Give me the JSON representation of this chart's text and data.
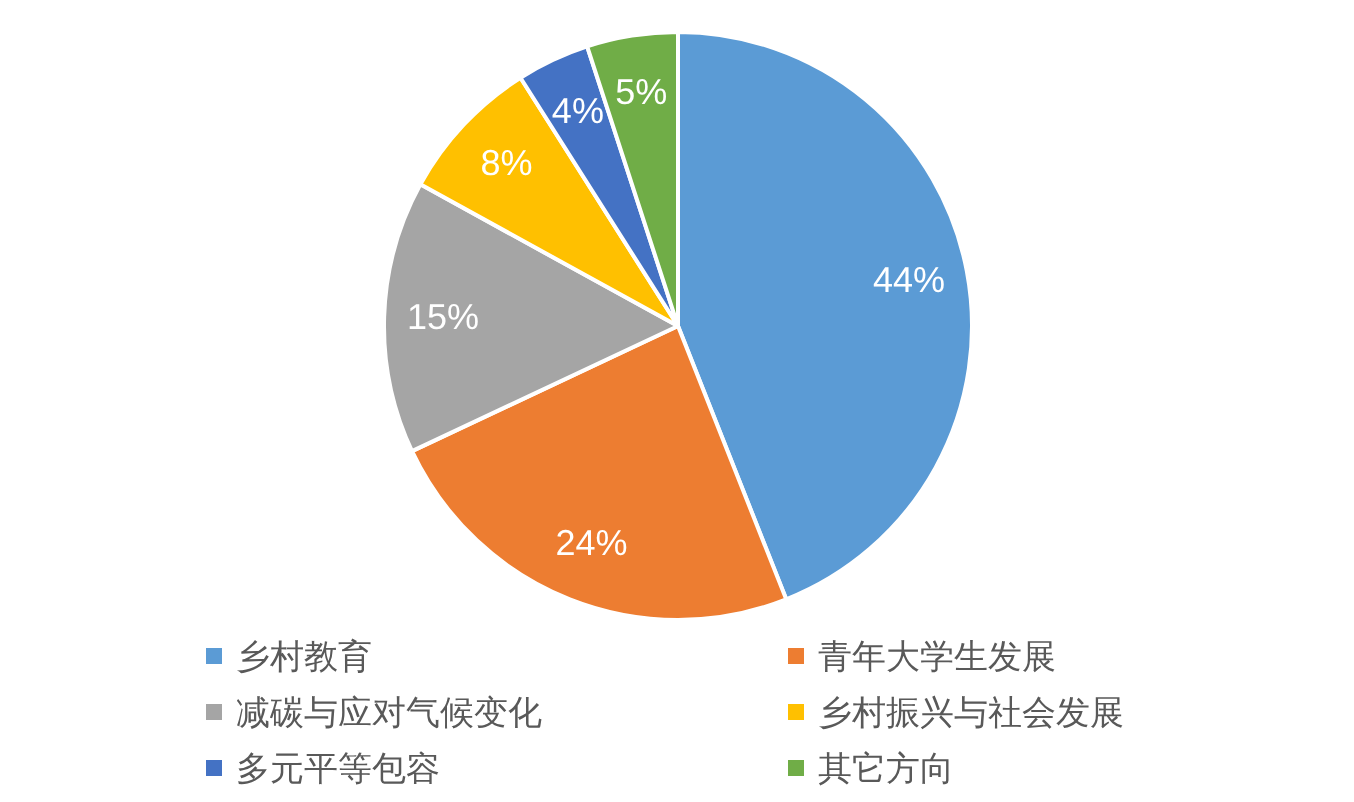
{
  "chart_data": {
    "type": "pie",
    "categories": [
      "乡村教育",
      "青年大学生发展",
      "减碳与应对气候变化",
      "乡村振兴与社会发展",
      "多元平等包容",
      "其它方向"
    ],
    "values": [
      44,
      24,
      15,
      8,
      4,
      5
    ],
    "colors": [
      "#5b9bd5",
      "#ed7d31",
      "#a5a5a5",
      "#ffc000",
      "#4472c4",
      "#70ad47"
    ],
    "value_labels": [
      "44%",
      "24%",
      "15%",
      "8%",
      "4%",
      "5%"
    ],
    "legend": "bottom"
  }
}
